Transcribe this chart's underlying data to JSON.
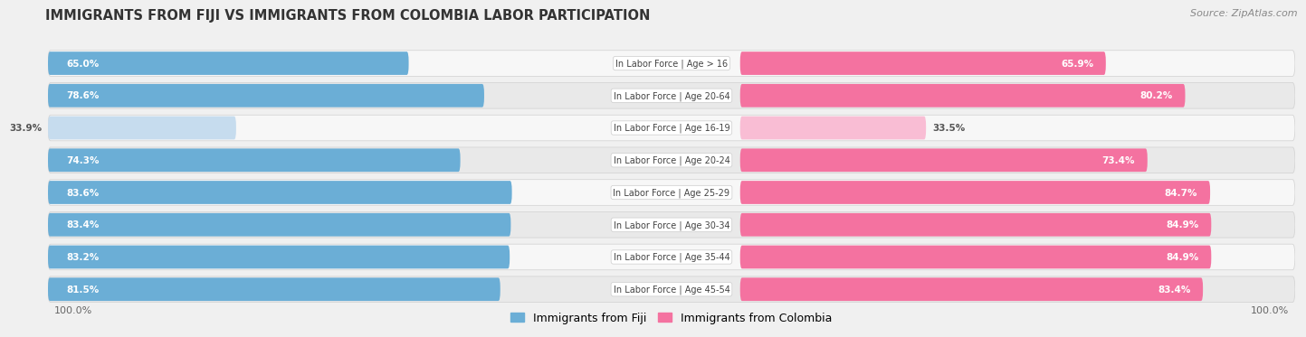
{
  "title": "IMMIGRANTS FROM FIJI VS IMMIGRANTS FROM COLOMBIA LABOR PARTICIPATION",
  "source": "Source: ZipAtlas.com",
  "categories": [
    "In Labor Force | Age > 16",
    "In Labor Force | Age 20-64",
    "In Labor Force | Age 16-19",
    "In Labor Force | Age 20-24",
    "In Labor Force | Age 25-29",
    "In Labor Force | Age 30-34",
    "In Labor Force | Age 35-44",
    "In Labor Force | Age 45-54"
  ],
  "fiji_values": [
    65.0,
    78.6,
    33.9,
    74.3,
    83.6,
    83.4,
    83.2,
    81.5
  ],
  "colombia_values": [
    65.9,
    80.2,
    33.5,
    73.4,
    84.7,
    84.9,
    84.9,
    83.4
  ],
  "fiji_color": "#6BAED6",
  "fiji_color_light": "#C6DCEE",
  "colombia_color": "#F472A0",
  "colombia_color_light": "#F9BDD4",
  "row_bg_odd": "#f5f5f5",
  "row_bg_even": "#e8e8e8",
  "background_color": "#f0f0f0",
  "max_value": 100.0,
  "legend_fiji": "Immigrants from Fiji",
  "legend_colombia": "Immigrants from Colombia",
  "label_area_pct": 22.0
}
